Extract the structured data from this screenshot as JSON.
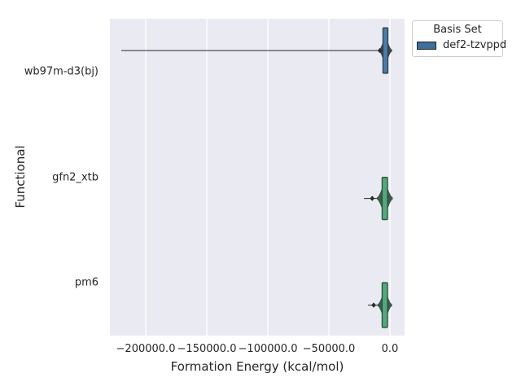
{
  "figure": {
    "background": "#ffffff",
    "plot_background": "#eaeaf2",
    "grid_color": "#ffffff",
    "text_color": "#262626",
    "whisker_color": "#3f3f3f"
  },
  "chart_data": {
    "type": "violin",
    "orientation": "horizontal",
    "title": "",
    "xlabel": "Formation Energy (kcal/mol)",
    "ylabel": "Functional",
    "grid": true,
    "xlim": [
      -229300,
      12000
    ],
    "xticks": [
      -200000,
      -150000,
      -100000,
      -50000,
      0
    ],
    "xtick_labels": [
      "−200000.0",
      "−150000.0",
      "−100000.0",
      "−50000.0",
      "0.0"
    ],
    "categories": [
      "wb97m-d3(bj)",
      "gfn2_xtb",
      "pm6"
    ],
    "legend": {
      "title": "Basis Set",
      "position": "upper right, outside axes",
      "entries": [
        {
          "label": "def2-tzvppd",
          "color": "#3d6f99"
        }
      ]
    },
    "violins": [
      {
        "functional": "wb97m-d3(bj)",
        "basis_set": "def2-tzvppd",
        "fill": "#4d7ca7",
        "edge": "#2f3e4c",
        "inner": "#3a4653",
        "whisker_min": -220000,
        "whisker_max": 1300,
        "peak_center": -3700,
        "peak_halfwidth": 2000,
        "body_halfwidth": 5200,
        "notch_x": -8200,
        "offset_frac": -0.2,
        "peak_halfheight_frac": 0.215,
        "body_halfheight_frac": 0.1
      },
      {
        "functional": "gfn2_xtb",
        "basis_set": "def2-tzvppd",
        "fill": "#52a97c",
        "edge": "#2e4f3e",
        "inner": "#3e5a4a",
        "whisker_min": -21300,
        "whisker_max": 1300,
        "peak_center": -4200,
        "peak_halfwidth": 2200,
        "body_halfwidth": 6300,
        "notch_x": -14500,
        "offset_frac": 0.2,
        "peak_halfheight_frac": 0.2,
        "body_halfheight_frac": 0.12
      },
      {
        "functional": "pm6",
        "basis_set": "def2-tzvppd",
        "fill": "#52a97c",
        "edge": "#2e4f3e",
        "inner": "#3e5a4a",
        "whisker_min": -18000,
        "whisker_max": 1300,
        "peak_center": -4200,
        "peak_halfwidth": 2200,
        "body_halfwidth": 5700,
        "notch_x": -13300,
        "offset_frac": 0.21,
        "peak_halfheight_frac": 0.212,
        "body_halfheight_frac": 0.11
      }
    ]
  }
}
